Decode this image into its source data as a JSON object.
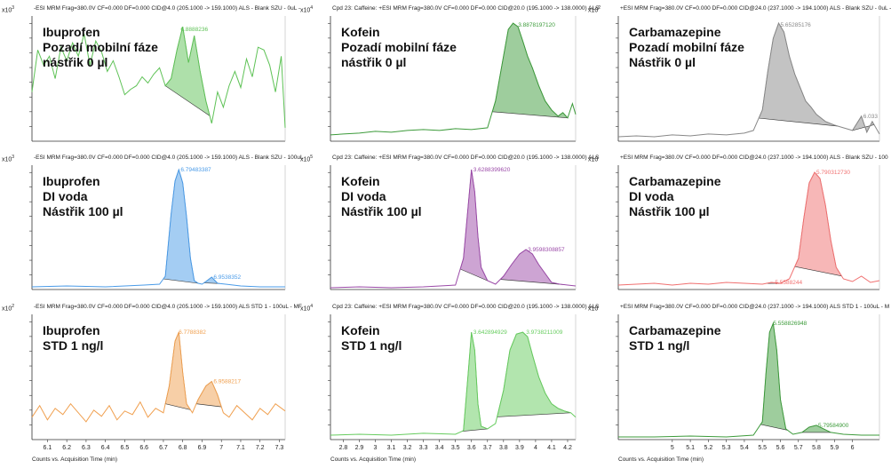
{
  "chart_data": [
    {
      "type": "area",
      "header": "-ESI MRM Frag=380.0V CF=0.000 DF=0.000 CID@4.0 (205.1000 -> 159.1000) ALS - Blank SZU - 0uL -",
      "multiplier_base": "x10",
      "multiplier_exp": "3",
      "title_lines": [
        "Ibuprofen",
        "Pozadí mobilní fáze",
        "nástřik 0 µl"
      ],
      "color": "#5ec256",
      "xlim": [
        6.02,
        7.33
      ],
      "ylim": [
        0,
        1.4
      ],
      "x_ticks": [],
      "xlabel": "",
      "x": [
        6.02,
        6.05,
        6.08,
        6.11,
        6.14,
        6.17,
        6.2,
        6.23,
        6.26,
        6.29,
        6.32,
        6.35,
        6.38,
        6.41,
        6.44,
        6.47,
        6.5,
        6.53,
        6.56,
        6.59,
        6.62,
        6.65,
        6.68,
        6.71,
        6.74,
        6.77,
        6.8,
        6.83,
        6.86,
        6.89,
        6.92,
        6.95,
        6.98,
        7.01,
        7.04,
        7.07,
        7.1,
        7.13,
        7.16,
        7.19,
        7.22,
        7.25,
        7.28,
        7.31,
        7.33
      ],
      "y": [
        0.55,
        1.02,
        0.85,
        0.95,
        0.7,
        1.05,
        0.9,
        1.1,
        0.95,
        1.2,
        0.85,
        1.12,
        1.0,
        0.78,
        0.9,
        0.72,
        0.52,
        0.58,
        0.62,
        0.72,
        0.65,
        0.75,
        0.82,
        0.62,
        0.7,
        1.02,
        1.28,
        0.88,
        1.18,
        0.78,
        0.45,
        0.2,
        0.55,
        0.38,
        0.62,
        0.78,
        0.6,
        0.92,
        0.72,
        1.05,
        1.02,
        0.85,
        0.55,
        0.95,
        0.15
      ],
      "peaks": [
        {
          "label": "6.8888236",
          "x": 6.78,
          "y": 1.25,
          "x_start": 6.71,
          "x_end": 6.94
        }
      ]
    },
    {
      "type": "area",
      "header": "Cpd 23: Caffeine: +ESI MRM Frag=380.0V CF=0.000 DF=0.000 CID@20.0 (195.1000 -> 138.0000) ALS",
      "multiplier_base": "x10",
      "multiplier_exp": "4",
      "title_lines": [
        "Kofein",
        "Pozadí mobilní fáze",
        "nástřik 0 µl"
      ],
      "color": "#3d9b3b",
      "xlim": [
        2.72,
        4.25
      ],
      "ylim": [
        0,
        1.4
      ],
      "x_ticks": [],
      "xlabel": "",
      "x": [
        2.72,
        2.8,
        2.9,
        3.0,
        3.1,
        3.2,
        3.3,
        3.4,
        3.5,
        3.6,
        3.7,
        3.75,
        3.8,
        3.83,
        3.86,
        3.89,
        3.92,
        3.95,
        3.98,
        4.02,
        4.06,
        4.1,
        4.14,
        4.17,
        4.2,
        4.23,
        4.25
      ],
      "y": [
        0.07,
        0.08,
        0.09,
        0.11,
        0.1,
        0.12,
        0.13,
        0.12,
        0.14,
        0.13,
        0.15,
        0.45,
        0.95,
        1.25,
        1.32,
        1.28,
        1.12,
        0.95,
        0.82,
        0.62,
        0.45,
        0.35,
        0.28,
        0.32,
        0.26,
        0.42,
        0.3
      ],
      "peaks": [
        {
          "label": "3.8878197120",
          "x": 3.88,
          "y": 1.3,
          "x_start": 3.73,
          "x_end": 4.2
        }
      ]
    },
    {
      "type": "area",
      "header": "+ESI MRM Frag=380.0V CF=0.000 DF=0.000 CID@24.0 (237.1000 -> 194.1000) ALS - Blank SZU - 0uL -",
      "multiplier_base": "x10",
      "multiplier_exp": "2",
      "title_lines": [
        "Carbamazepine",
        "Pozadí mobilní fáze",
        "Nástřik 0 µl"
      ],
      "color": "#888888",
      "xlim": [
        4.7,
        6.15
      ],
      "ylim": [
        0,
        1.4
      ],
      "x_ticks": [],
      "xlabel": "",
      "x": [
        4.7,
        4.8,
        4.9,
        5.0,
        5.1,
        5.2,
        5.3,
        5.4,
        5.45,
        5.5,
        5.53,
        5.56,
        5.59,
        5.62,
        5.65,
        5.68,
        5.71,
        5.74,
        5.77,
        5.8,
        5.85,
        5.9,
        5.95,
        6.0,
        6.05,
        6.08,
        6.11,
        6.15
      ],
      "y": [
        0.05,
        0.06,
        0.05,
        0.07,
        0.06,
        0.08,
        0.07,
        0.09,
        0.12,
        0.35,
        0.78,
        1.15,
        1.32,
        1.22,
        0.95,
        0.75,
        0.6,
        0.45,
        0.38,
        0.3,
        0.22,
        0.18,
        0.15,
        0.12,
        0.28,
        0.1,
        0.22,
        0.08
      ],
      "peaks": [
        {
          "label": "5.65285176",
          "x": 5.59,
          "y": 1.3,
          "x_start": 5.48,
          "x_end": 5.92
        },
        {
          "label": "6.033",
          "x": 6.05,
          "y": 0.28,
          "x_start": 6.0,
          "x_end": 6.12
        }
      ]
    },
    {
      "type": "area",
      "header": "-ESI MRM Frag=380.0V CF=0.000 DF=0.000 CID@4.0 (205.1000 -> 159.1000) ALS - Blank SZU - 100uL",
      "multiplier_base": "x10",
      "multiplier_exp": "3",
      "title_lines": [
        "Ibuprofen",
        "DI voda",
        "Nástřik 100 µl"
      ],
      "color": "#4a9be8",
      "xlim": [
        6.02,
        7.33
      ],
      "ylim": [
        0,
        1.4
      ],
      "x_ticks": [],
      "xlabel": "",
      "x": [
        6.02,
        6.2,
        6.4,
        6.6,
        6.68,
        6.71,
        6.74,
        6.76,
        6.78,
        6.8,
        6.82,
        6.84,
        6.86,
        6.88,
        6.9,
        6.92,
        6.95,
        6.98,
        7.1,
        7.2,
        7.33
      ],
      "y": [
        0.03,
        0.04,
        0.03,
        0.05,
        0.06,
        0.15,
        0.85,
        1.22,
        1.35,
        1.2,
        0.82,
        0.35,
        0.1,
        0.07,
        0.06,
        0.09,
        0.14,
        0.07,
        0.04,
        0.03,
        0.03
      ],
      "peaks": [
        {
          "label": "6.79483387",
          "x": 6.78,
          "y": 1.35,
          "x_start": 6.7,
          "x_end": 6.88
        },
        {
          "label": "6.9538352",
          "x": 6.95,
          "y": 0.14,
          "x_start": 6.91,
          "x_end": 6.99
        }
      ]
    },
    {
      "type": "area",
      "header": "Cpd 23: Caffeine: +ESI MRM Frag=380.0V CF=0.000 DF=0.000 CID@20.0 (195.1000 -> 138.0000) ALS",
      "multiplier_base": "x10",
      "multiplier_exp": "5",
      "title_lines": [
        "Kofein",
        "DI voda",
        "Nástřik 100 µl"
      ],
      "color": "#9b4aa8",
      "xlim": [
        2.72,
        4.25
      ],
      "ylim": [
        0,
        1.4
      ],
      "x_ticks": [],
      "xlabel": "",
      "x": [
        2.72,
        2.9,
        3.1,
        3.3,
        3.5,
        3.55,
        3.58,
        3.6,
        3.62,
        3.64,
        3.66,
        3.7,
        3.75,
        3.8,
        3.85,
        3.9,
        3.94,
        3.98,
        4.02,
        4.06,
        4.1,
        4.15,
        4.2,
        4.25
      ],
      "y": [
        0.02,
        0.03,
        0.02,
        0.03,
        0.05,
        0.35,
        0.95,
        1.35,
        1.1,
        0.6,
        0.25,
        0.1,
        0.06,
        0.15,
        0.28,
        0.4,
        0.45,
        0.4,
        0.28,
        0.18,
        0.08,
        0.06,
        0.05,
        0.04
      ],
      "peaks": [
        {
          "label": "3.6288399620",
          "x": 3.6,
          "y": 1.35,
          "x_start": 3.53,
          "x_end": 3.72
        },
        {
          "label": "3.9598308857",
          "x": 3.94,
          "y": 0.45,
          "x_start": 3.78,
          "x_end": 4.18
        }
      ]
    },
    {
      "type": "area",
      "header": "+ESI MRM Frag=380.0V CF=0.000 DF=0.000 CID@24.0 (237.1000 -> 194.1000) ALS - Blank SZU - 100",
      "multiplier_base": "x10",
      "multiplier_exp": "",
      "title_lines": [
        "Carbamazepine",
        "DI voda",
        "Nástřik 100 µl"
      ],
      "color": "#f07070",
      "xlim": [
        4.7,
        6.15
      ],
      "ylim": [
        0,
        1.4
      ],
      "x_ticks": [],
      "xlabel": "",
      "x": [
        4.7,
        4.8,
        4.9,
        5.0,
        5.1,
        5.2,
        5.3,
        5.4,
        5.5,
        5.55,
        5.6,
        5.65,
        5.7,
        5.73,
        5.76,
        5.79,
        5.82,
        5.85,
        5.88,
        5.91,
        5.95,
        6.0,
        6.05,
        6.1,
        6.15
      ],
      "y": [
        0.05,
        0.06,
        0.07,
        0.05,
        0.07,
        0.06,
        0.08,
        0.07,
        0.06,
        0.08,
        0.07,
        0.12,
        0.35,
        0.8,
        1.2,
        1.32,
        1.25,
        0.95,
        0.55,
        0.25,
        0.12,
        0.09,
        0.15,
        0.08,
        0.1
      ],
      "peaks": [
        {
          "label": "5.790312730",
          "x": 5.79,
          "y": 1.32,
          "x_start": 5.68,
          "x_end": 5.94
        },
        {
          "label": "5.5588244",
          "x": 5.56,
          "y": 0.08,
          "x_start": 5.52,
          "x_end": 5.6
        }
      ]
    },
    {
      "type": "area",
      "header": "-ESI MRM Frag=380.0V CF=0.000 DF=0.000 CID@4.0 (205.1000 -> 159.1000) ALS STD 1 - 100uL - MF",
      "multiplier_base": "x10",
      "multiplier_exp": "2",
      "title_lines": [
        "Ibuprofen",
        "STD 1 ng/l"
      ],
      "color": "#f0a050",
      "xlim": [
        6.02,
        7.33
      ],
      "ylim": [
        0,
        1.4
      ],
      "x_ticks": [
        "6.1",
        "6.2",
        "6.3",
        "6.4",
        "6.5",
        "6.6",
        "6.7",
        "6.8",
        "6.9",
        "7",
        "7.1",
        "7.2",
        "7.3"
      ],
      "xlabel": "Counts vs. Acquisition Time (min)",
      "x": [
        6.02,
        6.06,
        6.1,
        6.14,
        6.18,
        6.22,
        6.26,
        6.3,
        6.34,
        6.38,
        6.42,
        6.46,
        6.5,
        6.54,
        6.58,
        6.62,
        6.66,
        6.7,
        6.73,
        6.76,
        6.78,
        6.8,
        6.82,
        6.85,
        6.88,
        6.92,
        6.95,
        6.98,
        7.01,
        7.04,
        7.08,
        7.12,
        7.16,
        7.2,
        7.24,
        7.28,
        7.33
      ],
      "y": [
        0.25,
        0.38,
        0.22,
        0.35,
        0.28,
        0.4,
        0.3,
        0.2,
        0.33,
        0.26,
        0.38,
        0.22,
        0.32,
        0.28,
        0.42,
        0.25,
        0.35,
        0.3,
        0.6,
        1.1,
        1.2,
        0.75,
        0.4,
        0.3,
        0.45,
        0.6,
        0.65,
        0.5,
        0.3,
        0.25,
        0.38,
        0.3,
        0.22,
        0.35,
        0.28,
        0.4,
        0.32
      ],
      "peaks": [
        {
          "label": "6.7788382",
          "x": 6.77,
          "y": 1.2,
          "x_start": 6.71,
          "x_end": 6.84
        },
        {
          "label": "6.9588217",
          "x": 6.95,
          "y": 0.65,
          "x_start": 6.87,
          "x_end": 7.0
        }
      ]
    },
    {
      "type": "area",
      "header": "Cpd 23: Caffeine: +ESI MRM Frag=380.0V CF=0.000 DF=0.000 CID@20.0 (195.1000 -> 138.0000) ALS",
      "multiplier_base": "x10",
      "multiplier_exp": "4",
      "title_lines": [
        "Kofein",
        "STD 1 ng/l"
      ],
      "color": "#66cc5e",
      "xlim": [
        2.72,
        4.25
      ],
      "ylim": [
        0,
        1.4
      ],
      "x_ticks": [
        "2.8",
        "2.9",
        "3",
        "3.1",
        "3.2",
        "3.3",
        "3.4",
        "3.5",
        "3.6",
        "3.7",
        "3.8",
        "3.9",
        "4",
        "4.1",
        "4.2"
      ],
      "xlabel": "Counts vs. Acquisition Time (min)",
      "x": [
        2.72,
        2.9,
        3.1,
        3.3,
        3.5,
        3.55,
        3.58,
        3.6,
        3.62,
        3.64,
        3.66,
        3.7,
        3.75,
        3.8,
        3.84,
        3.88,
        3.92,
        3.95,
        3.98,
        4.02,
        4.06,
        4.1,
        4.14,
        4.18,
        4.22,
        4.25
      ],
      "y": [
        0.05,
        0.06,
        0.05,
        0.07,
        0.06,
        0.1,
        0.75,
        1.2,
        1.0,
        0.4,
        0.15,
        0.12,
        0.18,
        0.55,
        1.0,
        1.18,
        1.2,
        1.15,
        0.95,
        0.7,
        0.52,
        0.4,
        0.35,
        0.32,
        0.3,
        0.25
      ],
      "peaks": [
        {
          "label": "3.642894929",
          "x": 3.6,
          "y": 1.2,
          "x_start": 3.54,
          "x_end": 3.7
        },
        {
          "label": "3.9738211009",
          "x": 3.93,
          "y": 1.2,
          "x_start": 3.76,
          "x_end": 4.22
        }
      ]
    },
    {
      "type": "area",
      "header": "+ESI MRM Frag=380.0V CF=0.000 DF=0.000 CID@24.0 (237.1000 -> 194.1000) ALS STD 1 - 100uL - M",
      "multiplier_base": "x10",
      "multiplier_exp": "",
      "title_lines": [
        "Carbamazepine",
        "STD 1 ng/l"
      ],
      "color": "#3d9b3b",
      "xlim": [
        4.7,
        6.15
      ],
      "ylim": [
        0,
        1.4
      ],
      "x_ticks": [
        "5",
        "5.1",
        "5.2",
        "5.3",
        "5.4",
        "5.5",
        "5.6",
        "5.7",
        "5.8",
        "5.9",
        "6"
      ],
      "xlabel": "Counts vs. Acquisition Time (min)",
      "x": [
        4.7,
        4.9,
        5.1,
        5.3,
        5.45,
        5.5,
        5.52,
        5.54,
        5.56,
        5.58,
        5.6,
        5.63,
        5.67,
        5.72,
        5.76,
        5.8,
        5.84,
        5.88,
        5.95,
        6.05,
        6.15
      ],
      "y": [
        0.03,
        0.03,
        0.04,
        0.03,
        0.05,
        0.2,
        0.75,
        1.2,
        1.3,
        1.0,
        0.45,
        0.12,
        0.06,
        0.08,
        0.14,
        0.16,
        0.12,
        0.08,
        0.06,
        0.05,
        0.05
      ],
      "peaks": [
        {
          "label": "5.558826948",
          "x": 5.55,
          "y": 1.3,
          "x_start": 5.49,
          "x_end": 5.64
        },
        {
          "label": "5.79584900",
          "x": 5.8,
          "y": 0.16,
          "x_start": 5.72,
          "x_end": 5.88
        }
      ]
    }
  ]
}
